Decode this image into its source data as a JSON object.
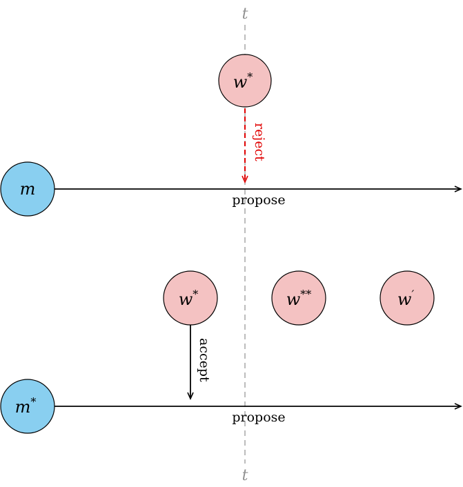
{
  "time_marker": {
    "top_label": "t",
    "bottom_label": "t"
  },
  "men": [
    {
      "label": "m",
      "sup": "",
      "propose_label": "propose"
    },
    {
      "label": "m",
      "sup": "*",
      "propose_label": "propose"
    }
  ],
  "women_top": {
    "label": "w",
    "sup": "*"
  },
  "women_bottom": [
    {
      "label": "w",
      "sup": "*"
    },
    {
      "label": "w",
      "sup": "**"
    },
    {
      "label": "w",
      "sup": "′"
    }
  ],
  "edges": {
    "reject_label": "reject",
    "accept_label": "accept"
  },
  "colors": {
    "man_fill": "#89CFF0",
    "woman_fill": "#F4C2C2",
    "reject": "#E00000",
    "time_line": "#A0A0A0",
    "stroke": "#000000"
  }
}
